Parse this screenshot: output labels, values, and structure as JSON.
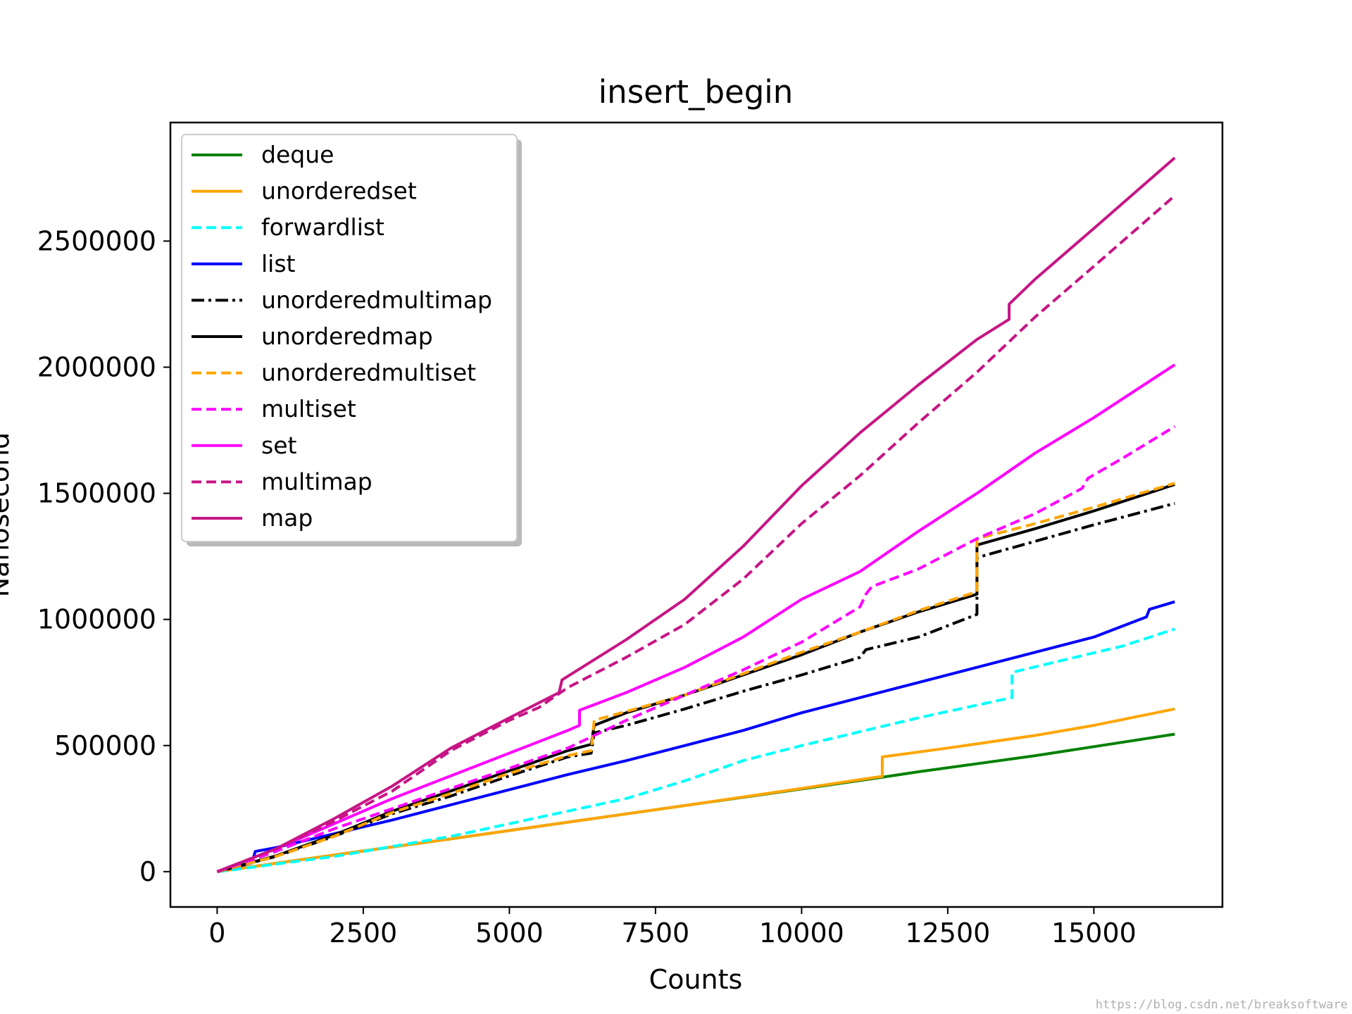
{
  "chart_data": {
    "type": "line",
    "title": "insert_begin",
    "xlabel": "Counts",
    "ylabel": "Nanosecond",
    "xlim": [
      -800,
      17200
    ],
    "ylim": [
      -140000,
      2970000
    ],
    "xticks": [
      0,
      2500,
      5000,
      7500,
      10000,
      12500,
      15000
    ],
    "xtick_labels": [
      "0",
      "2500",
      "5000",
      "7500",
      "10000",
      "12500",
      "15000"
    ],
    "yticks": [
      0,
      500000,
      1000000,
      1500000,
      2000000,
      2500000
    ],
    "ytick_labels": [
      "0",
      "500000",
      "1000000",
      "1500000",
      "2000000",
      "2500000"
    ],
    "grid": false,
    "legend_position": "top-left",
    "series": [
      {
        "name": "deque",
        "color": "#008000",
        "dash": "solid",
        "points": [
          [
            0,
            0
          ],
          [
            2000,
            66000
          ],
          [
            4000,
            130000
          ],
          [
            6000,
            196000
          ],
          [
            8000,
            262000
          ],
          [
            10000,
            328000
          ],
          [
            11400,
            375000
          ],
          [
            12000,
            396000
          ],
          [
            14000,
            460000
          ],
          [
            16384,
            545000
          ]
        ]
      },
      {
        "name": "unorderedset",
        "color": "#ffa500",
        "dash": "solid",
        "points": [
          [
            0,
            0
          ],
          [
            2000,
            66000
          ],
          [
            4000,
            130000
          ],
          [
            6000,
            196000
          ],
          [
            8000,
            262000
          ],
          [
            10000,
            330000
          ],
          [
            11380,
            378000
          ],
          [
            11380,
            455000
          ],
          [
            12500,
            490000
          ],
          [
            14000,
            540000
          ],
          [
            15000,
            580000
          ],
          [
            16384,
            645000
          ]
        ]
      },
      {
        "name": "forwardlist",
        "color": "#00ffff",
        "dash": "dashed",
        "points": [
          [
            0,
            0
          ],
          [
            500,
            14000
          ],
          [
            1000,
            30000
          ],
          [
            2000,
            60000
          ],
          [
            3000,
            100000
          ],
          [
            4000,
            140000
          ],
          [
            5000,
            190000
          ],
          [
            6000,
            240000
          ],
          [
            7000,
            290000
          ],
          [
            8000,
            360000
          ],
          [
            8500,
            400000
          ],
          [
            9000,
            440000
          ],
          [
            10000,
            500000
          ],
          [
            11000,
            555000
          ],
          [
            12000,
            610000
          ],
          [
            13000,
            660000
          ],
          [
            13600,
            690000
          ],
          [
            13600,
            790000
          ],
          [
            14500,
            840000
          ],
          [
            15500,
            895000
          ],
          [
            16384,
            962000
          ]
        ]
      },
      {
        "name": "list",
        "color": "#0000ff",
        "dash": "solid",
        "points": [
          [
            0,
            0
          ],
          [
            600,
            35000
          ],
          [
            650,
            80000
          ],
          [
            1000,
            95000
          ],
          [
            2000,
            150000
          ],
          [
            3000,
            205000
          ],
          [
            4000,
            265000
          ],
          [
            5000,
            325000
          ],
          [
            6000,
            385000
          ],
          [
            7000,
            440000
          ],
          [
            8000,
            500000
          ],
          [
            9000,
            560000
          ],
          [
            10000,
            630000
          ],
          [
            11000,
            690000
          ],
          [
            12000,
            750000
          ],
          [
            13000,
            810000
          ],
          [
            14000,
            870000
          ],
          [
            15000,
            930000
          ],
          [
            15900,
            1010000
          ],
          [
            15950,
            1040000
          ],
          [
            16384,
            1070000
          ]
        ]
      },
      {
        "name": "unorderedmultimap",
        "color": "#000000",
        "dash": "dashdot",
        "points": [
          [
            0,
            0
          ],
          [
            1000,
            60000
          ],
          [
            2000,
            140000
          ],
          [
            3000,
            230000
          ],
          [
            4000,
            300000
          ],
          [
            5000,
            380000
          ],
          [
            6000,
            455000
          ],
          [
            6400,
            470000
          ],
          [
            6450,
            550000
          ],
          [
            7000,
            580000
          ],
          [
            8000,
            645000
          ],
          [
            9000,
            715000
          ],
          [
            10000,
            780000
          ],
          [
            11000,
            850000
          ],
          [
            11100,
            880000
          ],
          [
            12000,
            930000
          ],
          [
            13000,
            1020000
          ],
          [
            13000,
            1245000
          ],
          [
            14000,
            1310000
          ],
          [
            15000,
            1375000
          ],
          [
            16384,
            1460000
          ]
        ]
      },
      {
        "name": "unorderedmap",
        "color": "#000000",
        "dash": "solid",
        "points": [
          [
            0,
            0
          ],
          [
            1000,
            62000
          ],
          [
            2000,
            145000
          ],
          [
            3000,
            240000
          ],
          [
            4000,
            320000
          ],
          [
            5000,
            400000
          ],
          [
            6000,
            480000
          ],
          [
            6400,
            505000
          ],
          [
            6450,
            580000
          ],
          [
            7000,
            630000
          ],
          [
            8000,
            700000
          ],
          [
            9000,
            780000
          ],
          [
            10000,
            860000
          ],
          [
            11000,
            950000
          ],
          [
            12000,
            1030000
          ],
          [
            13000,
            1100000
          ],
          [
            13000,
            1295000
          ],
          [
            14000,
            1360000
          ],
          [
            15000,
            1430000
          ],
          [
            16384,
            1535000
          ]
        ]
      },
      {
        "name": "unorderedmultiset",
        "color": "#ffa500",
        "dash": "dashed",
        "points": [
          [
            0,
            0
          ],
          [
            1000,
            60000
          ],
          [
            2000,
            140000
          ],
          [
            3000,
            235000
          ],
          [
            4000,
            310000
          ],
          [
            5000,
            390000
          ],
          [
            6000,
            460000
          ],
          [
            6400,
            480000
          ],
          [
            6450,
            600000
          ],
          [
            7000,
            635000
          ],
          [
            8000,
            700000
          ],
          [
            9000,
            785000
          ],
          [
            10000,
            870000
          ],
          [
            11000,
            950000
          ],
          [
            12000,
            1035000
          ],
          [
            13000,
            1110000
          ],
          [
            13000,
            1320000
          ],
          [
            14000,
            1380000
          ],
          [
            15000,
            1445000
          ],
          [
            16384,
            1540000
          ]
        ]
      },
      {
        "name": "multiset",
        "color": "#ff00ff",
        "dash": "dashed",
        "points": [
          [
            0,
            0
          ],
          [
            1000,
            80000
          ],
          [
            2000,
            170000
          ],
          [
            3000,
            250000
          ],
          [
            4000,
            330000
          ],
          [
            5000,
            410000
          ],
          [
            6000,
            490000
          ],
          [
            7000,
            600000
          ],
          [
            8000,
            700000
          ],
          [
            9000,
            800000
          ],
          [
            10000,
            910000
          ],
          [
            11000,
            1050000
          ],
          [
            11100,
            1100000
          ],
          [
            11200,
            1130000
          ],
          [
            12000,
            1200000
          ],
          [
            13000,
            1320000
          ],
          [
            14000,
            1420000
          ],
          [
            14800,
            1520000
          ],
          [
            14900,
            1560000
          ],
          [
            15500,
            1640000
          ],
          [
            16384,
            1765000
          ]
        ]
      },
      {
        "name": "set",
        "color": "#ff00ff",
        "dash": "solid",
        "points": [
          [
            0,
            0
          ],
          [
            1000,
            90000
          ],
          [
            2000,
            190000
          ],
          [
            3000,
            290000
          ],
          [
            4000,
            380000
          ],
          [
            5000,
            470000
          ],
          [
            6000,
            560000
          ],
          [
            6200,
            580000
          ],
          [
            6200,
            640000
          ],
          [
            7000,
            710000
          ],
          [
            8000,
            810000
          ],
          [
            9000,
            930000
          ],
          [
            10000,
            1080000
          ],
          [
            11000,
            1190000
          ],
          [
            12000,
            1350000
          ],
          [
            13000,
            1500000
          ],
          [
            14000,
            1660000
          ],
          [
            15000,
            1800000
          ],
          [
            16384,
            2010000
          ]
        ]
      },
      {
        "name": "multimap",
        "color": "#c71585",
        "dash": "dashed",
        "points": [
          [
            0,
            0
          ],
          [
            1000,
            90000
          ],
          [
            2000,
            200000
          ],
          [
            3000,
            320000
          ],
          [
            4000,
            480000
          ],
          [
            4500,
            540000
          ],
          [
            5000,
            600000
          ],
          [
            5500,
            650000
          ],
          [
            6000,
            730000
          ],
          [
            7000,
            850000
          ],
          [
            8000,
            980000
          ],
          [
            9000,
            1160000
          ],
          [
            10000,
            1380000
          ],
          [
            11000,
            1570000
          ],
          [
            12000,
            1780000
          ],
          [
            13000,
            1980000
          ],
          [
            14000,
            2200000
          ],
          [
            15000,
            2400000
          ],
          [
            16384,
            2680000
          ]
        ]
      },
      {
        "name": "map",
        "color": "#c71585",
        "dash": "solid",
        "points": [
          [
            0,
            0
          ],
          [
            1000,
            90000
          ],
          [
            2000,
            210000
          ],
          [
            3000,
            340000
          ],
          [
            4000,
            490000
          ],
          [
            5000,
            610000
          ],
          [
            5850,
            710000
          ],
          [
            5900,
            760000
          ],
          [
            7000,
            920000
          ],
          [
            8000,
            1080000
          ],
          [
            9000,
            1290000
          ],
          [
            10000,
            1530000
          ],
          [
            11000,
            1740000
          ],
          [
            12000,
            1930000
          ],
          [
            13000,
            2110000
          ],
          [
            13550,
            2190000
          ],
          [
            13550,
            2250000
          ],
          [
            14000,
            2350000
          ],
          [
            15000,
            2550000
          ],
          [
            16384,
            2830000
          ]
        ]
      }
    ]
  },
  "watermark": "https://blog.csdn.net/breaksoftware"
}
